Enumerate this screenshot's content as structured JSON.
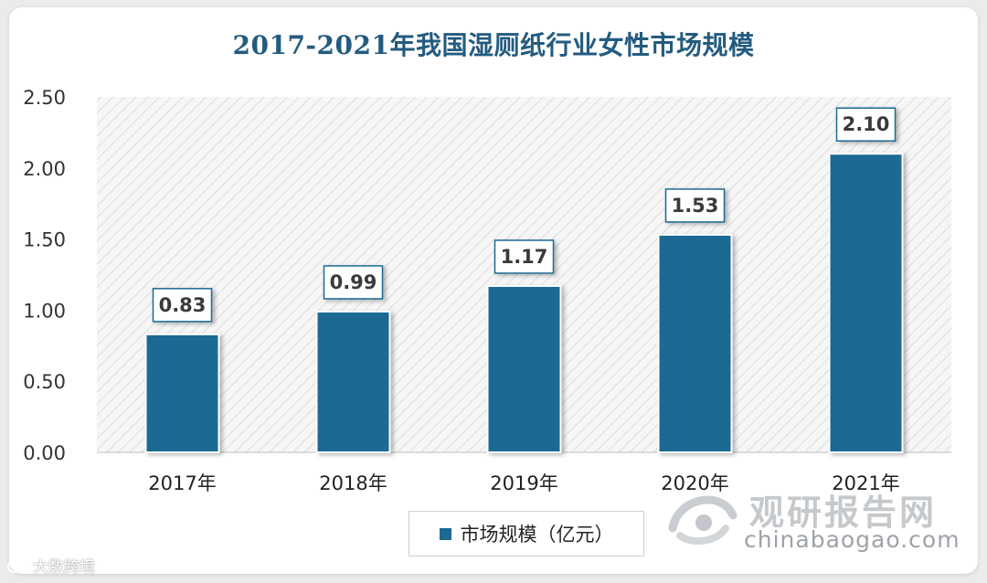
{
  "chart_data": {
    "type": "bar",
    "title": "2017-2021年我国湿厕纸行业女性市场规模",
    "categories": [
      "2017年",
      "2018年",
      "2019年",
      "2020年",
      "2021年"
    ],
    "series": [
      {
        "name": "市场规模（亿元）",
        "values": [
          0.83,
          0.99,
          1.17,
          1.53,
          2.1
        ]
      }
    ],
    "data_labels": [
      "0.83",
      "0.99",
      "1.17",
      "1.53",
      "2.10"
    ],
    "xlabel": "",
    "ylabel": "",
    "ylim": [
      0,
      2.5
    ],
    "yticks": [
      "0.00",
      "0.50",
      "1.00",
      "1.50",
      "2.00",
      "2.50"
    ],
    "legend_position": "bottom",
    "grid": false
  },
  "colors": {
    "bar": "#1b6a93",
    "title": "#245b80"
  },
  "watermark": {
    "name": "观研报告网",
    "url": "chinabaogao.com"
  },
  "source_tag": "大数跨境"
}
